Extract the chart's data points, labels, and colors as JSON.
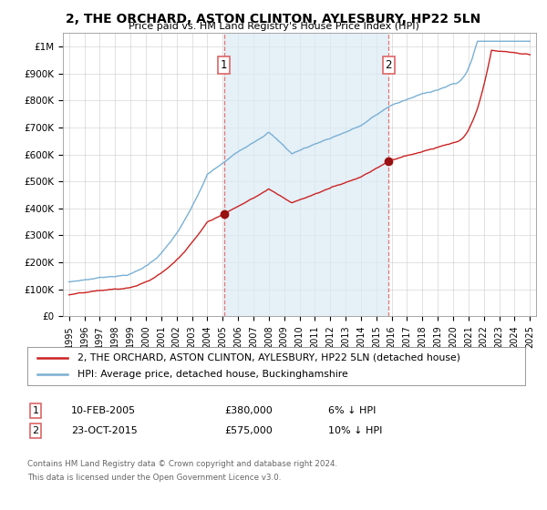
{
  "title": "2, THE ORCHARD, ASTON CLINTON, AYLESBURY, HP22 5LN",
  "subtitle": "Price paid vs. HM Land Registry's House Price Index (HPI)",
  "ylim": [
    0,
    1050000
  ],
  "yticks": [
    0,
    100000,
    200000,
    300000,
    400000,
    500000,
    600000,
    700000,
    800000,
    900000,
    1000000
  ],
  "ytick_labels": [
    "£0",
    "£100K",
    "£200K",
    "£300K",
    "£400K",
    "£500K",
    "£600K",
    "£700K",
    "£800K",
    "£900K",
    "£1M"
  ],
  "hpi_color": "#7ab0d4",
  "hpi_fill_color": "#daeaf5",
  "price_color": "#cc2222",
  "vline_color": "#dd6666",
  "sale1_year": 2005.08,
  "sale1_price": 380000,
  "sale2_year": 2015.8,
  "sale2_price": 575000,
  "legend_entry1": "2, THE ORCHARD, ASTON CLINTON, AYLESBURY, HP22 5LN (detached house)",
  "legend_entry2": "HPI: Average price, detached house, Buckinghamshire",
  "footer1": "Contains HM Land Registry data © Crown copyright and database right 2024.",
  "footer2": "This data is licensed under the Open Government Licence v3.0."
}
